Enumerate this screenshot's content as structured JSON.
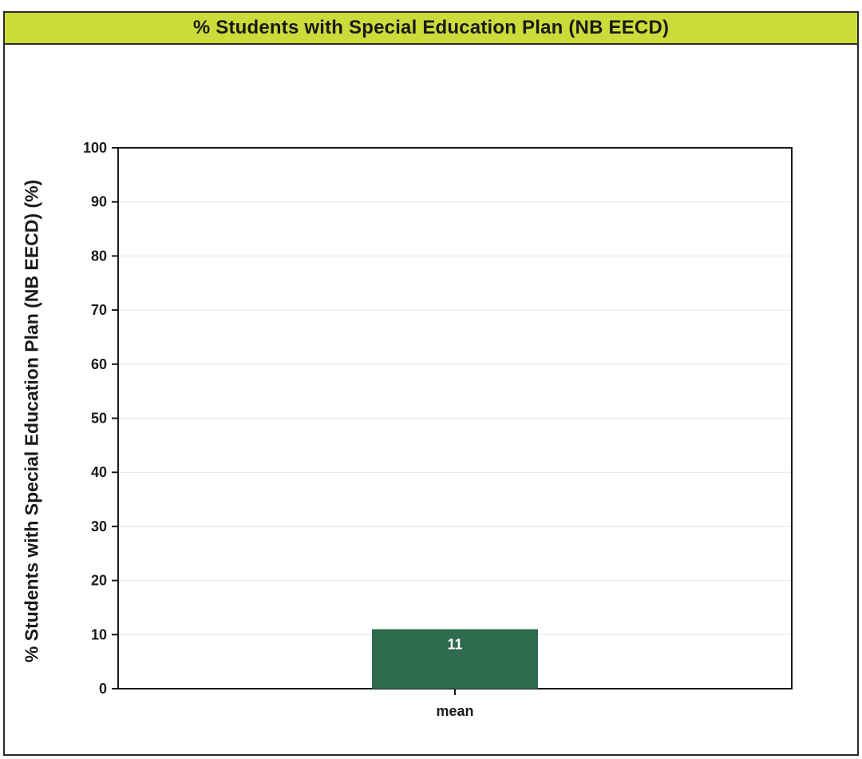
{
  "chart_data": {
    "type": "bar",
    "title": "% Students with Special Education Plan (NB EECD)",
    "ylabel": "% Students with Special Education Plan (NB EECD)  (%)",
    "xlabel": "",
    "categories": [
      "mean"
    ],
    "values": [
      11
    ],
    "data_labels": [
      "11"
    ],
    "ylim": [
      0,
      100
    ],
    "yticks": [
      0,
      10,
      20,
      30,
      40,
      50,
      60,
      70,
      80,
      90,
      100
    ],
    "ytick_labels": [
      "0",
      "10",
      "20",
      "30",
      "40",
      "50",
      "60",
      "70",
      "80",
      "90",
      "100"
    ],
    "grid": true,
    "legend": "none",
    "colors": {
      "bar": "#2e6b4e",
      "title_bar": "#cbdc3a",
      "grid": "#e4e4e4"
    }
  }
}
